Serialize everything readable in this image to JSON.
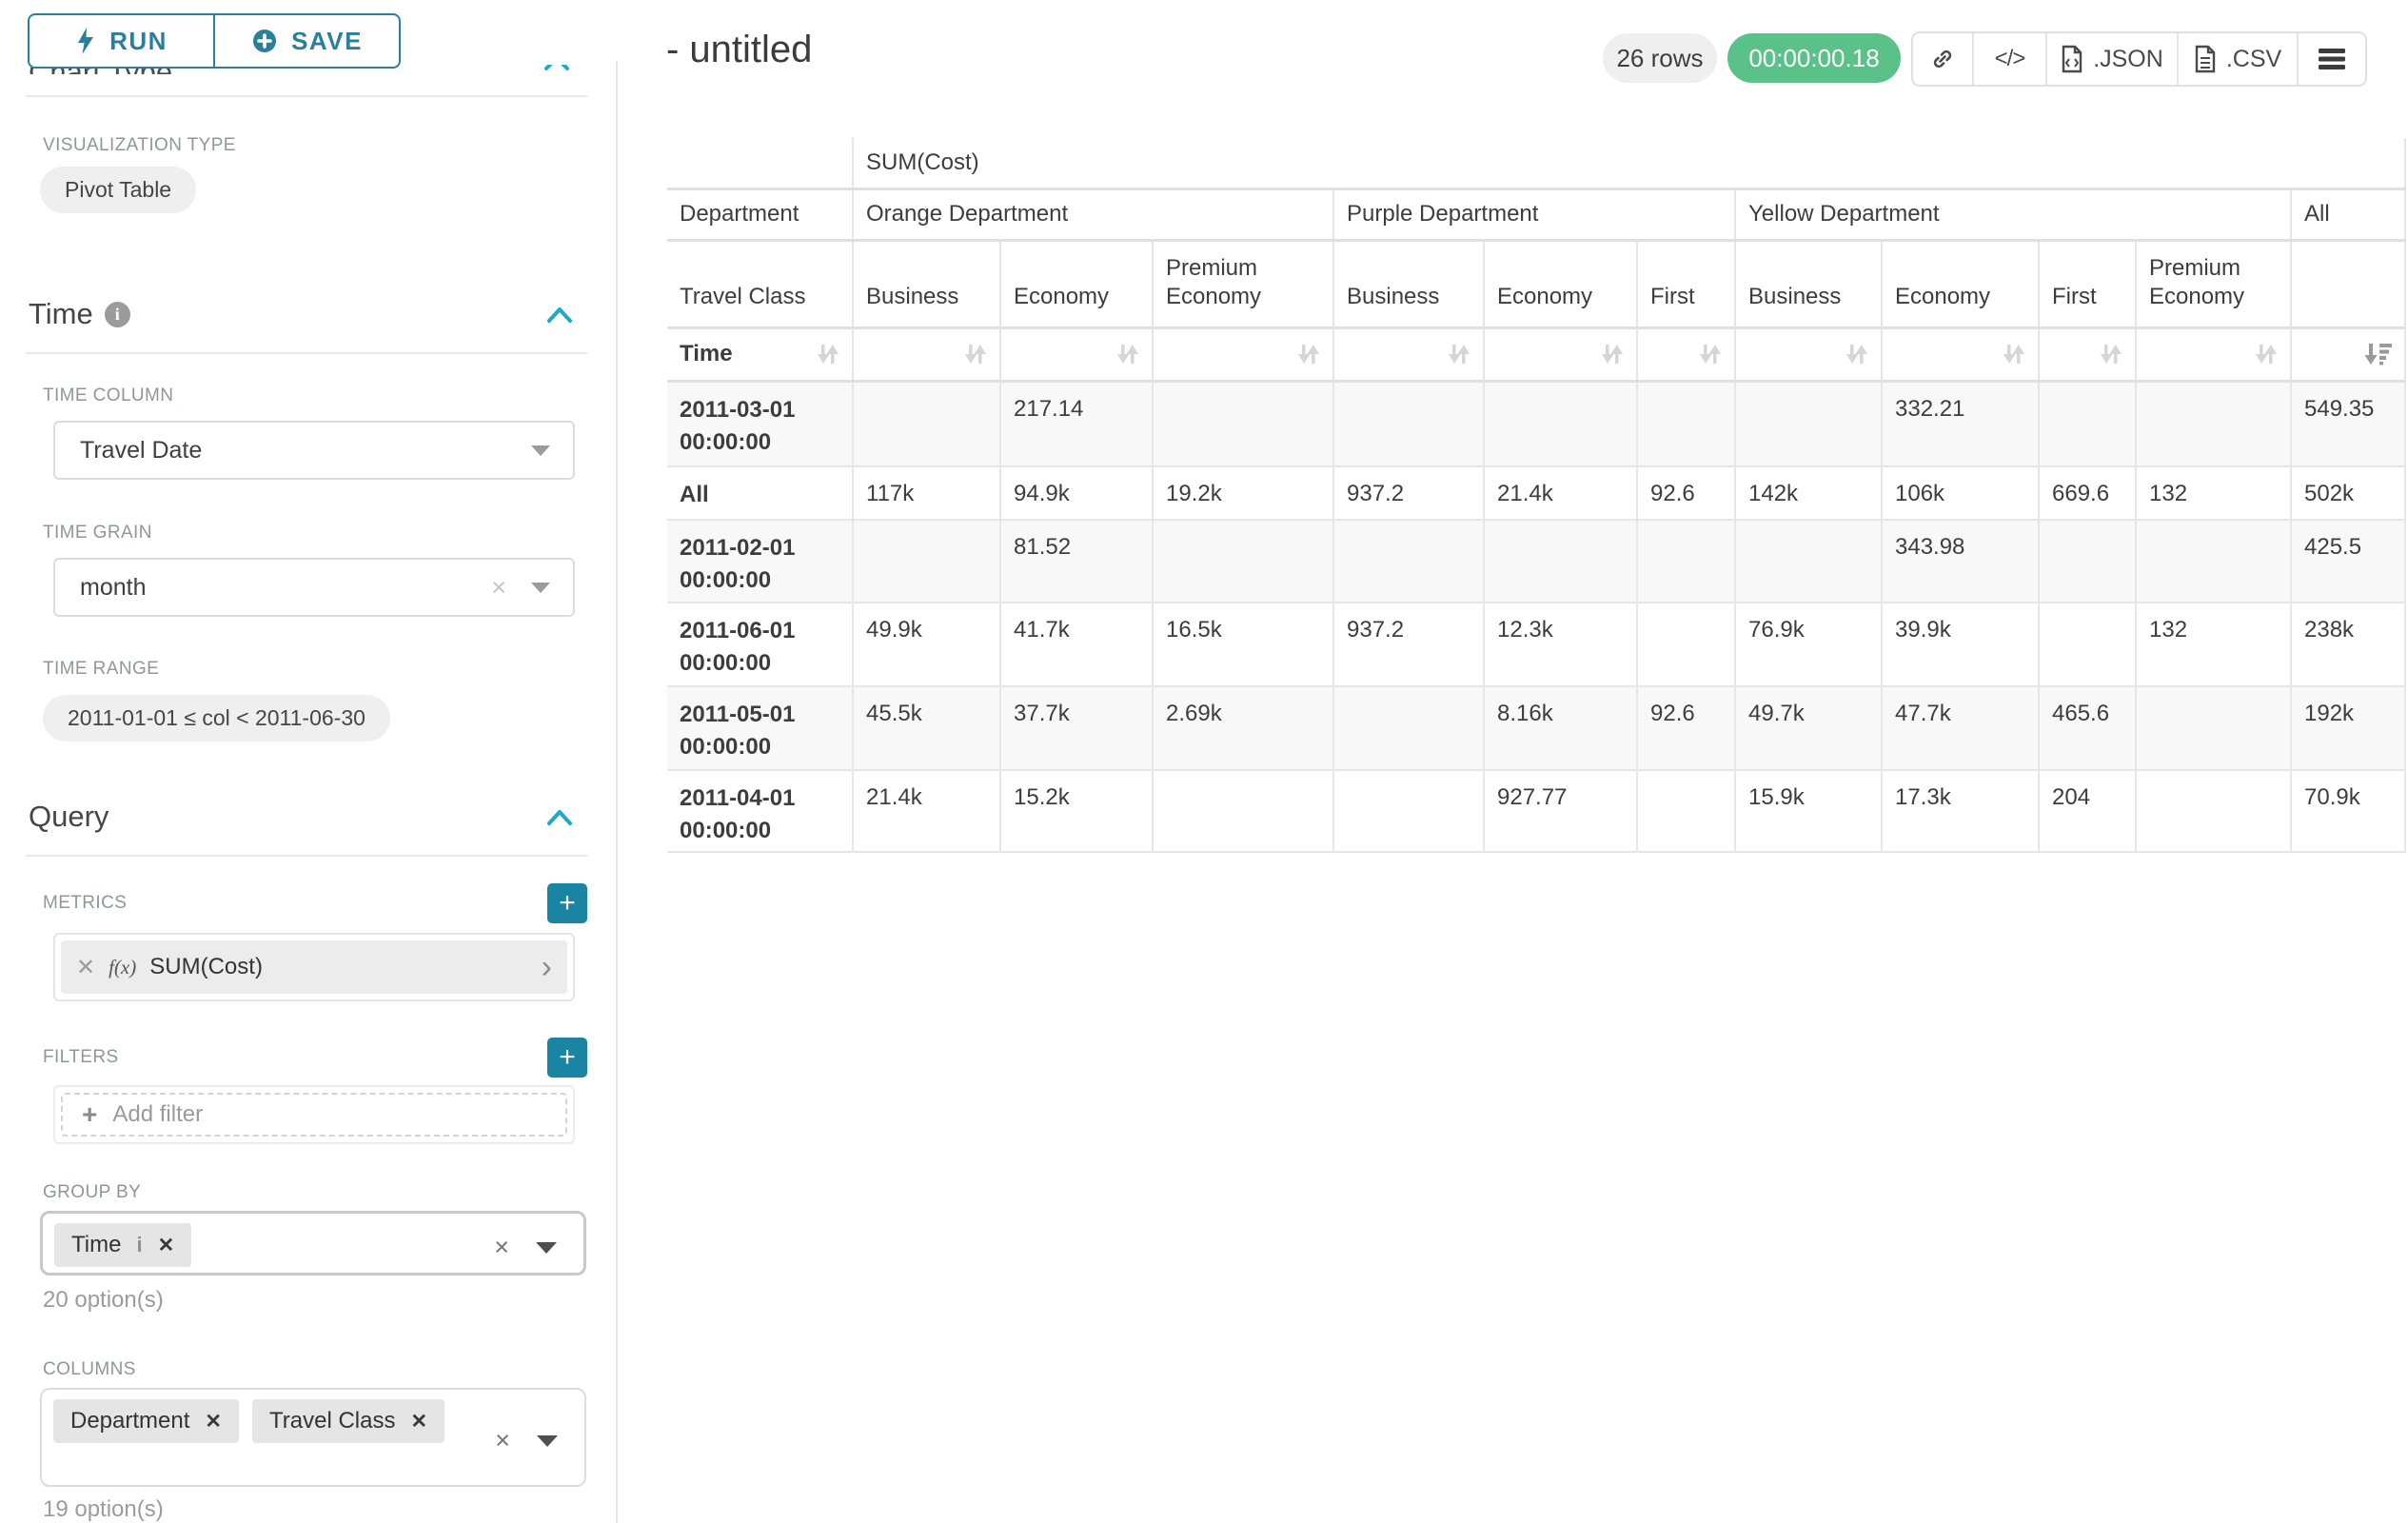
{
  "colors": {
    "primary_teal": "#2b7f9b",
    "accent_blue": "#1fa8c9",
    "plus_teal": "#1a85a2",
    "success_green": "#5ac189"
  },
  "panel": {
    "run_label": "RUN",
    "save_label": "SAVE",
    "chart_type_heading": "Chart Type",
    "viz_type_label": "VISUALIZATION TYPE",
    "viz_type_value": "Pivot Table",
    "time_heading": "Time",
    "time_column_label": "TIME COLUMN",
    "time_column_value": "Travel Date",
    "time_grain_label": "TIME GRAIN",
    "time_grain_value": "month",
    "time_range_label": "TIME RANGE",
    "time_range_value": "2011-01-01 ≤ col < 2011-06-30",
    "query_heading": "Query",
    "metrics_label": "METRICS",
    "metric_fx": "f(x)",
    "metric_value": "SUM(Cost)",
    "filters_label": "FILTERS",
    "add_filter_label": "Add filter",
    "group_by_label": "GROUP BY",
    "group_by_tags": [
      "Time"
    ],
    "group_by_options_note": "20 option(s)",
    "columns_label": "COLUMNS",
    "columns_tags": [
      "Department",
      "Travel Class"
    ],
    "columns_options_note": "19 option(s)"
  },
  "header": {
    "title": "- untitled",
    "rows_badge": "26 rows",
    "timer": "00:00:00.18",
    "json_label": ".JSON",
    "csv_label": ".CSV"
  },
  "pivot": {
    "metric_header": "SUM(Cost)",
    "corner_department": "Department",
    "corner_travel_class": "Travel Class",
    "corner_time": "Time",
    "groups": [
      {
        "label": "Orange Department",
        "span": 3
      },
      {
        "label": "Purple Department",
        "span": 3
      },
      {
        "label": "Yellow Department",
        "span": 4
      },
      {
        "label": "All",
        "span": 1
      }
    ],
    "subcols": [
      "Business",
      "Economy",
      "Premium Economy",
      "Business",
      "Economy",
      "First",
      "Business",
      "Economy",
      "First",
      "Premium Economy",
      ""
    ],
    "sorted_desc_col": 10,
    "rows": [
      {
        "label": "2011-03-01 00:00:00",
        "values": [
          "",
          "217.14",
          "",
          "",
          "",
          "",
          "",
          "332.21",
          "",
          "",
          "549.35"
        ]
      },
      {
        "label": "All",
        "values": [
          "117k",
          "94.9k",
          "19.2k",
          "937.2",
          "21.4k",
          "92.6",
          "142k",
          "106k",
          "669.6",
          "132",
          "502k"
        ]
      },
      {
        "label": "2011-02-01 00:00:00",
        "values": [
          "",
          "81.52",
          "",
          "",
          "",
          "",
          "",
          "343.98",
          "",
          "",
          "425.5"
        ]
      },
      {
        "label": "2011-06-01 00:00:00",
        "values": [
          "49.9k",
          "41.7k",
          "16.5k",
          "937.2",
          "12.3k",
          "",
          "76.9k",
          "39.9k",
          "",
          "132",
          "238k"
        ]
      },
      {
        "label": "2011-05-01 00:00:00",
        "values": [
          "45.5k",
          "37.7k",
          "2.69k",
          "",
          "8.16k",
          "92.6",
          "49.7k",
          "47.7k",
          "465.6",
          "",
          "192k"
        ]
      },
      {
        "label": "2011-04-01 00:00:00",
        "values": [
          "21.4k",
          "15.2k",
          "",
          "",
          "927.77",
          "",
          "15.9k",
          "17.3k",
          "204",
          "",
          "70.9k"
        ]
      }
    ]
  }
}
